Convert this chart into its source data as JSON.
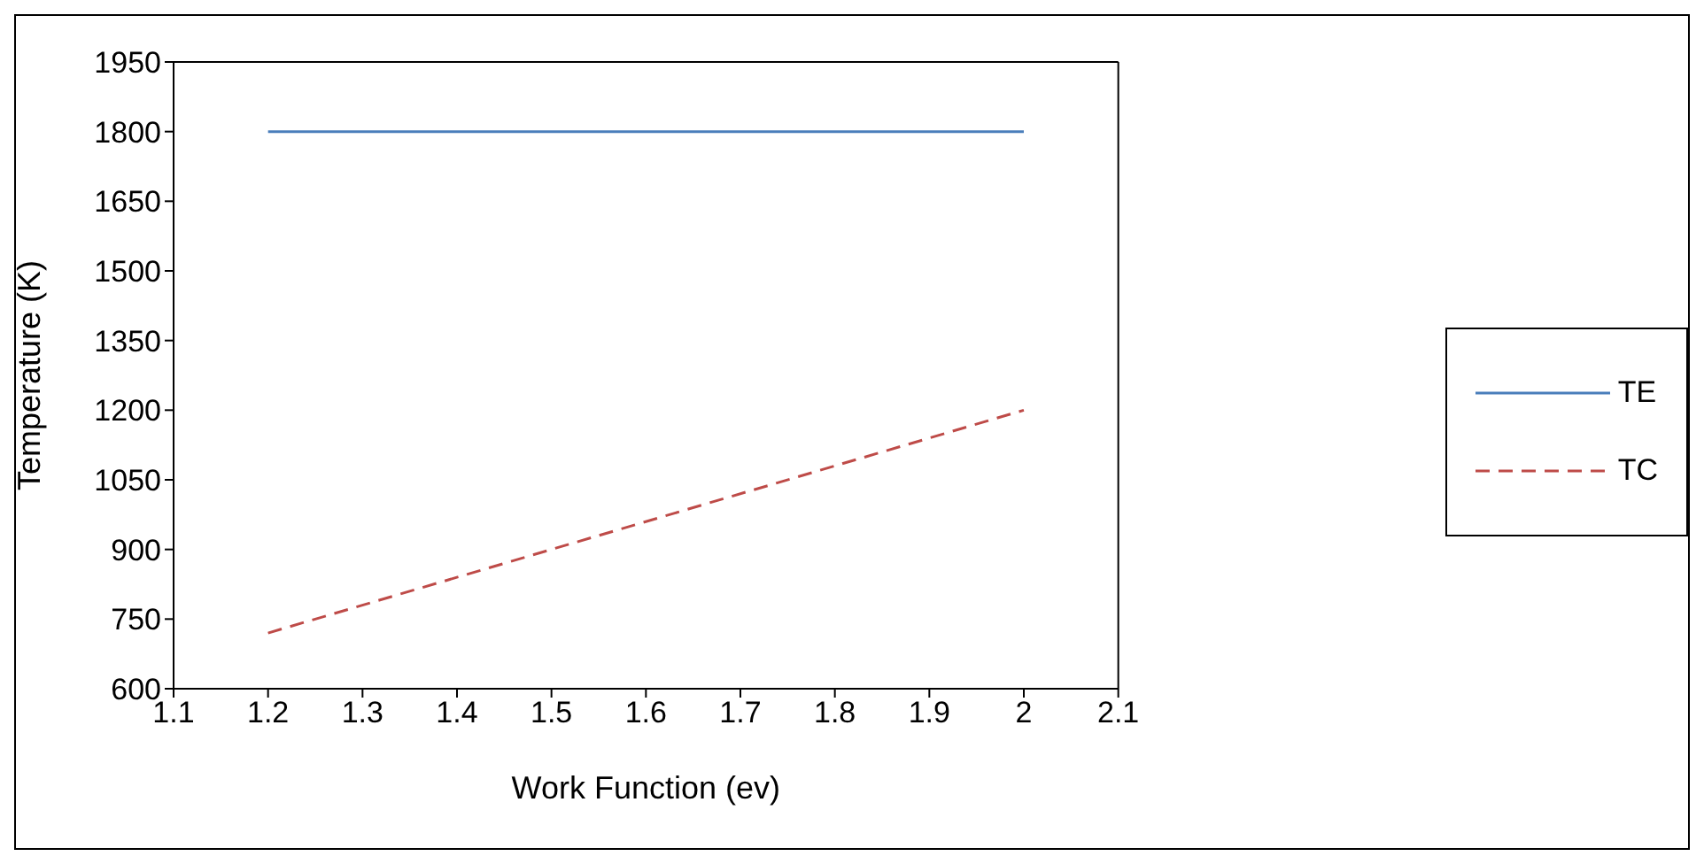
{
  "chart_data": {
    "type": "line",
    "xlabel": "Work Function (ev)",
    "ylabel": "Temperature (K)",
    "xlim": [
      1.1,
      2.1
    ],
    "xticks": [
      1.1,
      1.2,
      1.3,
      1.4,
      1.5,
      1.6,
      1.7,
      1.8,
      1.9,
      2,
      2.1
    ],
    "ylim": [
      600,
      1950
    ],
    "yticks": [
      600,
      750,
      900,
      1050,
      1200,
      1350,
      1500,
      1650,
      1800,
      1950
    ],
    "grid": false,
    "legend": "right",
    "marker": "none",
    "x": [
      1.2,
      2
    ],
    "series": [
      {
        "name": "TE",
        "color": "#4a7ebb",
        "line_style": "solid",
        "values": [
          1800,
          1800
        ]
      },
      {
        "name": "TC",
        "color": "#be4b48",
        "line_style": "dashed",
        "values": [
          720,
          1200
        ]
      }
    ]
  }
}
